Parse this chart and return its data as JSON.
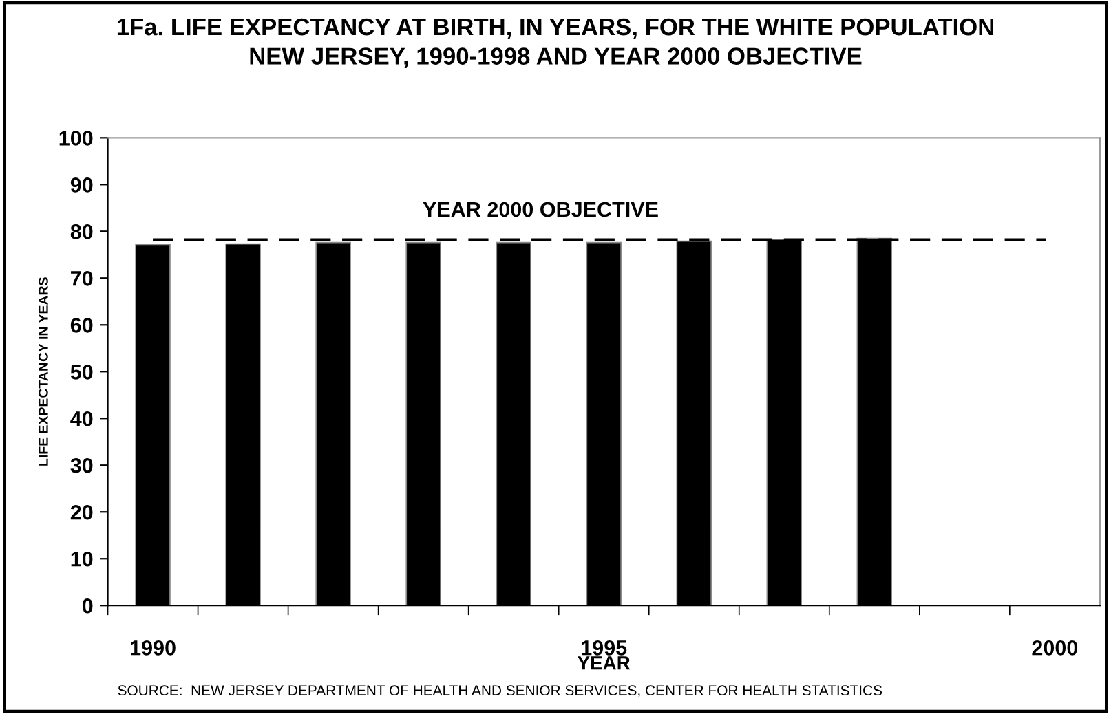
{
  "chart_data": {
    "type": "bar",
    "title": "1Fa. LIFE EXPECTANCY AT BIRTH, IN YEARS, FOR THE WHITE POPULATION\nNEW JERSEY, 1990-1998 AND YEAR 2000 OBJECTIVE",
    "xlabel": "YEAR",
    "ylabel": "LIFE EXPECTANCY IN YEARS",
    "categories": [
      "1990",
      null,
      null,
      null,
      null,
      "1995",
      null,
      null,
      null,
      null,
      "2000"
    ],
    "values": [
      77.2,
      77.3,
      77.6,
      77.6,
      77.6,
      77.6,
      77.9,
      78.3,
      78.5,
      null,
      null
    ],
    "color": "#000000",
    "ylim": [
      0,
      100
    ],
    "yticks": [
      0,
      10,
      20,
      30,
      40,
      50,
      60,
      70,
      80,
      90,
      100
    ],
    "ref_lines": [
      {
        "axis": "y",
        "value": 78.2,
        "label": "YEAR 2000 OBJECTIVE",
        "color": "#000000",
        "line_style": "dashed"
      }
    ],
    "grid": false,
    "legend": false,
    "annotations": [
      "SOURCE:  NEW JERSEY DEPARTMENT OF HEALTH AND SENIOR SERVICES, CENTER FOR HEALTH STATISTICS"
    ]
  }
}
